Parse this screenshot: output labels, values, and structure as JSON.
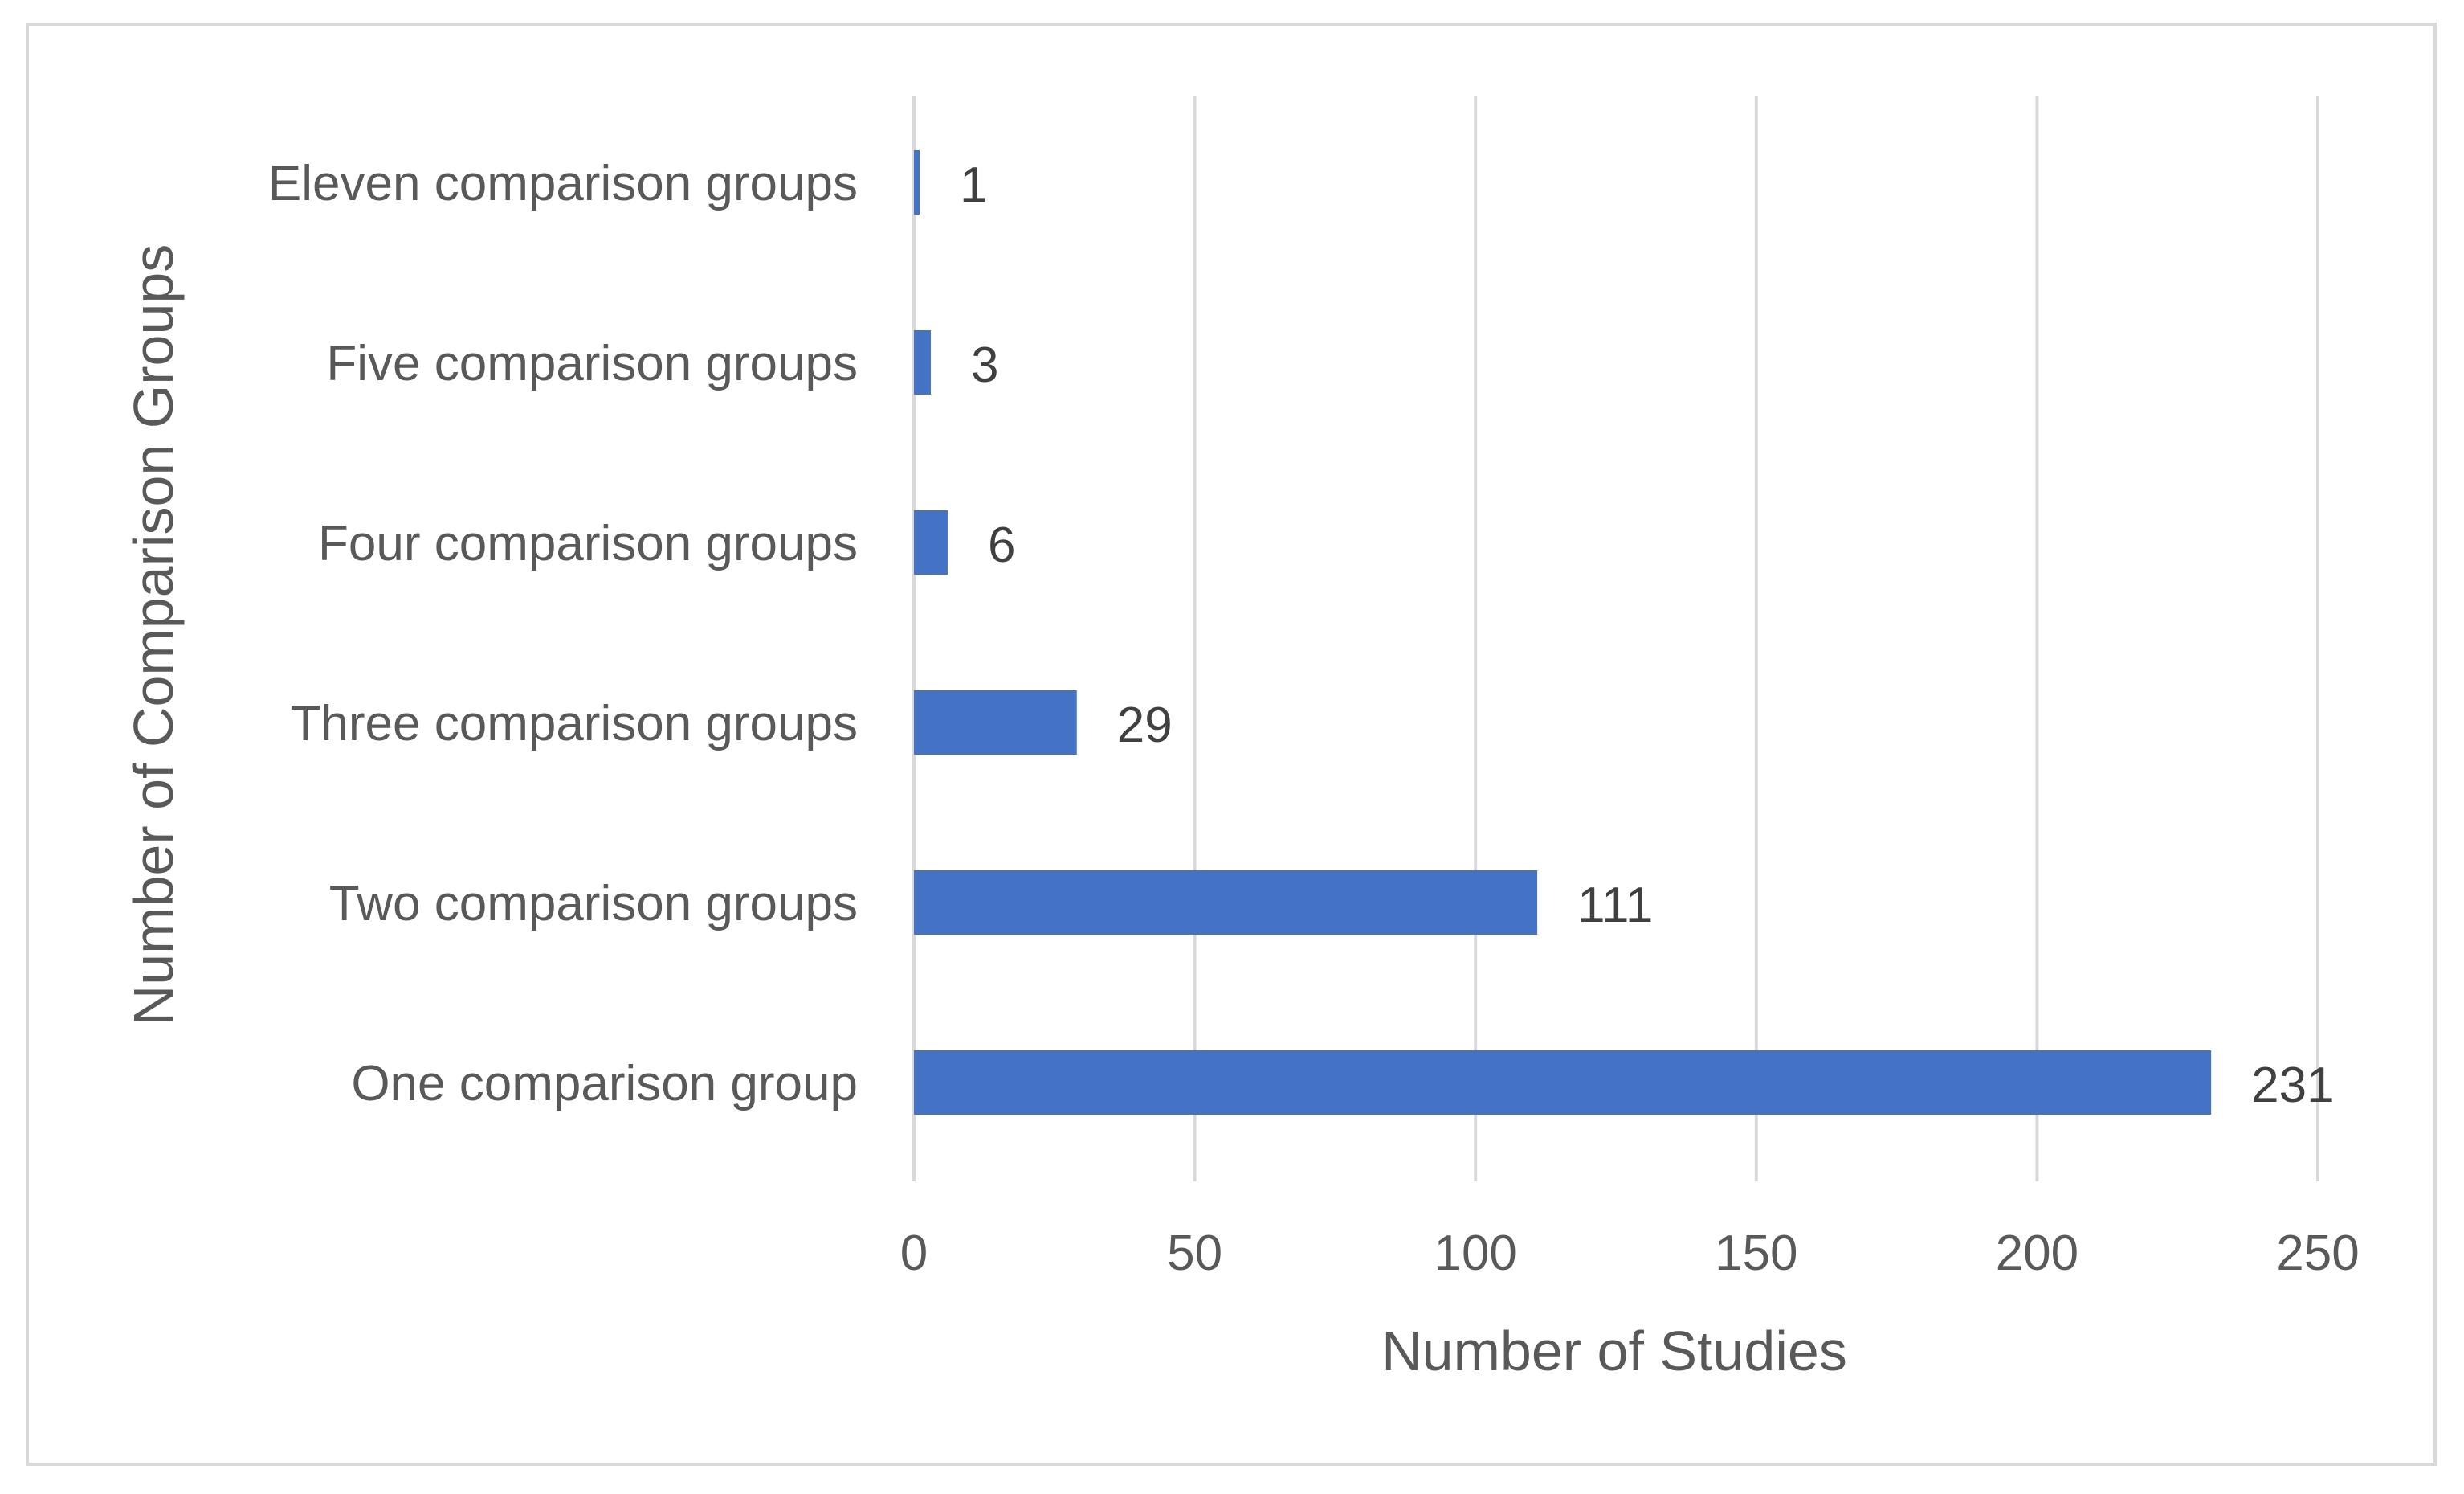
{
  "chart_data": {
    "type": "bar",
    "orientation": "horizontal",
    "title": "",
    "xlabel": "Number of Studies",
    "ylabel": "Number of Comparison Groups",
    "categories": [
      "One comparison group",
      "Two comparison groups",
      "Three comparison groups",
      "Four comparison groups",
      "Five comparison groups",
      "Eleven comparison groups"
    ],
    "values": [
      231,
      111,
      29,
      6,
      3,
      1
    ],
    "data_labels": [
      "231",
      "111",
      "29",
      "6",
      "3",
      "1"
    ],
    "xlim": [
      0,
      250
    ],
    "xticks": [
      0,
      50,
      100,
      150,
      200,
      250
    ],
    "xtick_labels": [
      "0",
      "50",
      "100",
      "150",
      "200",
      "250"
    ],
    "grid": "vertical",
    "legend": "none",
    "bar_color": "#4472C4",
    "grid_color": "#D9D9D9",
    "text_color": "#595959"
  }
}
